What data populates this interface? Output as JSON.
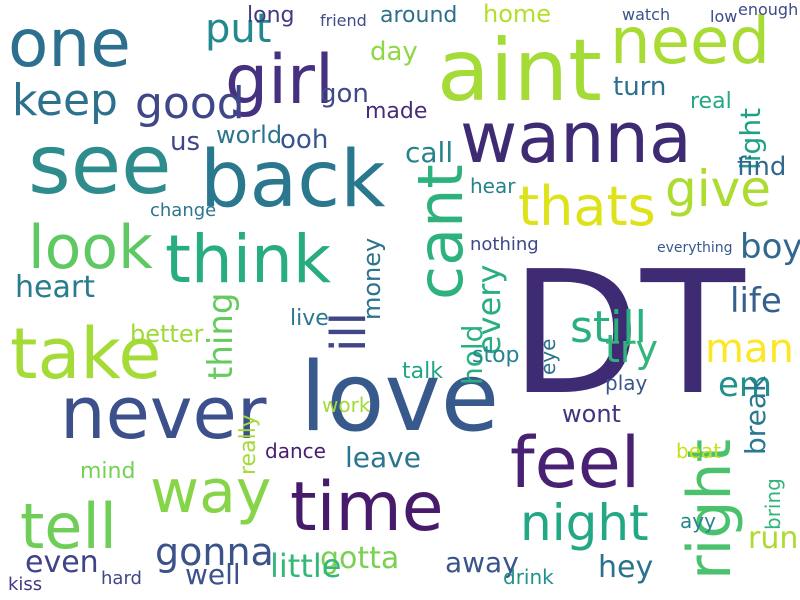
{
  "words": [
    {
      "text": "DT",
      "color": "#3f2a74"
    },
    {
      "text": "love",
      "color": "#37598c"
    },
    {
      "text": "wanna",
      "color": "#3f2a74"
    },
    {
      "text": "aint",
      "color": "#a4db36"
    },
    {
      "text": "one",
      "color": "#2d6f8e"
    },
    {
      "text": "back",
      "color": "#2a788e"
    },
    {
      "text": "girl",
      "color": "#45317f"
    },
    {
      "text": "see",
      "color": "#2f8c8c"
    },
    {
      "text": "never",
      "color": "#3c508b"
    },
    {
      "text": "take",
      "color": "#a4db36"
    },
    {
      "text": "feel",
      "color": "#482173"
    },
    {
      "text": "time",
      "color": "#481a6c"
    },
    {
      "text": "way",
      "color": "#86d549"
    },
    {
      "text": "tell",
      "color": "#6ece58"
    },
    {
      "text": "think",
      "color": "#27ad81"
    },
    {
      "text": "cant",
      "color": "#2db27d"
    },
    {
      "text": "right",
      "color": "#4ac16d"
    },
    {
      "text": "need",
      "color": "#a8db34"
    },
    {
      "text": "night",
      "color": "#22a884"
    },
    {
      "text": "look",
      "color": "#5ec962"
    },
    {
      "text": "thats",
      "color": "#dde318"
    },
    {
      "text": "give",
      "color": "#addc30"
    },
    {
      "text": "keep",
      "color": "#2c728e"
    },
    {
      "text": "good",
      "color": "#3f4788"
    },
    {
      "text": "put",
      "color": "#23898e"
    },
    {
      "text": "gonna",
      "color": "#3b528b"
    },
    {
      "text": "ill",
      "color": "#404688"
    },
    {
      "text": "still",
      "color": "#2ab07f"
    },
    {
      "text": "man",
      "color": "#fde725"
    },
    {
      "text": "try",
      "color": "#31b57b"
    },
    {
      "text": "life",
      "color": "#355f8d"
    },
    {
      "text": "boy",
      "color": "#31688e"
    },
    {
      "text": "heart",
      "color": "#287c8e"
    },
    {
      "text": "thing",
      "color": "#65cb5e"
    },
    {
      "text": "gotta",
      "color": "#7ad151"
    },
    {
      "text": "little",
      "color": "#35b779"
    },
    {
      "text": "even",
      "color": "#404387"
    },
    {
      "text": "well",
      "color": "#3b528b"
    },
    {
      "text": "hey",
      "color": "#2c728e"
    },
    {
      "text": "run",
      "color": "#addc30"
    },
    {
      "text": "em",
      "color": "#21918c"
    },
    {
      "text": "away",
      "color": "#39558c"
    },
    {
      "text": "leave",
      "color": "#2a768e"
    },
    {
      "text": "wont",
      "color": "#46337e"
    },
    {
      "text": "call",
      "color": "#26828e"
    },
    {
      "text": "every",
      "color": "#28ae80"
    },
    {
      "text": "hold",
      "color": "#2ab07f"
    },
    {
      "text": "ooh",
      "color": "#39568c"
    },
    {
      "text": "day",
      "color": "#8fd744"
    },
    {
      "text": "gon",
      "color": "#3e4a89"
    },
    {
      "text": "turn",
      "color": "#2e6f8e"
    },
    {
      "text": "light",
      "color": "#1fa188"
    },
    {
      "text": "find",
      "color": "#31688e"
    },
    {
      "text": "us",
      "color": "#404588"
    },
    {
      "text": "world",
      "color": "#2b748e"
    },
    {
      "text": "around",
      "color": "#2d708e"
    },
    {
      "text": "home",
      "color": "#b5de2b"
    },
    {
      "text": "real",
      "color": "#22a884"
    },
    {
      "text": "long",
      "color": "#443983"
    },
    {
      "text": "break",
      "color": "#29798e"
    },
    {
      "text": "money",
      "color": "#2c738e"
    },
    {
      "text": "stop",
      "color": "#25848e"
    },
    {
      "text": "better",
      "color": "#a0da39"
    },
    {
      "text": "talk",
      "color": "#20a486"
    },
    {
      "text": "live",
      "color": "#2a788e"
    },
    {
      "text": "play",
      "color": "#3a548c"
    },
    {
      "text": "mind",
      "color": "#75d054"
    },
    {
      "text": "dance",
      "color": "#481d6f"
    },
    {
      "text": "work",
      "color": "#a2da37"
    },
    {
      "text": "nothing",
      "color": "#3f4889"
    },
    {
      "text": "bring",
      "color": "#31b57b"
    },
    {
      "text": "eye",
      "color": "#2d718e"
    },
    {
      "text": "really",
      "color": "#a5db36"
    },
    {
      "text": "beat",
      "color": "#c8e020"
    },
    {
      "text": "ayy",
      "color": "#25858e"
    },
    {
      "text": "drink",
      "color": "#21918c"
    },
    {
      "text": "hard",
      "color": "#3f4788"
    },
    {
      "text": "kiss",
      "color": "#453781"
    },
    {
      "text": "everything",
      "color": "#38598c"
    },
    {
      "text": "hear",
      "color": "#26828e"
    },
    {
      "text": "change",
      "color": "#2b758e"
    },
    {
      "text": "made",
      "color": "#472c7a"
    },
    {
      "text": "friend",
      "color": "#3e4c8a"
    },
    {
      "text": "watch",
      "color": "#3b528b"
    },
    {
      "text": "enough",
      "color": "#3f4889"
    },
    {
      "text": "low",
      "color": "#3e4989"
    }
  ]
}
